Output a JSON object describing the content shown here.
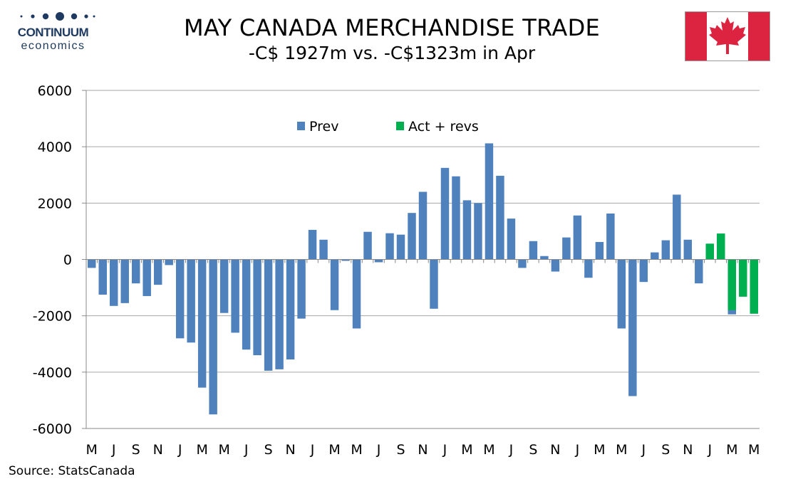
{
  "logo": {
    "name": "CONTINUUM",
    "sub": "economics"
  },
  "header": {
    "title": "MAY CANADA MERCHANDISE TRADE",
    "subtitle": "-C$ 1927m vs. -C$1323m in Apr"
  },
  "flag_icon": "canada-flag-icon",
  "source": "Source: StatsCanada",
  "colors": {
    "prev": "#4f81bd",
    "act": "#00b050",
    "grid": "#a6a6a6",
    "flag_red": "#dc2440"
  },
  "chart_data": {
    "type": "bar",
    "title": "",
    "ylim": [
      -6000,
      6000
    ],
    "yticks": [
      6000,
      4000,
      2000,
      0,
      -2000,
      -4000,
      -6000
    ],
    "grid": true,
    "legend_position": "top-center",
    "x_tick_labels": [
      "M",
      "J",
      "S",
      "N",
      "J",
      "M",
      "M",
      "J",
      "S",
      "N",
      "J",
      "M",
      "M",
      "J",
      "S",
      "N",
      "J",
      "M",
      "M",
      "J",
      "S",
      "N",
      "J",
      "M",
      "M",
      "J",
      "S",
      "N",
      "J",
      "M",
      "M"
    ],
    "series": [
      {
        "name": "Prev",
        "values": [
          -300,
          -1250,
          -1650,
          -1550,
          -850,
          -1300,
          -900,
          -200,
          -2800,
          -2950,
          -4550,
          -5500,
          -1900,
          -2600,
          -3200,
          -3400,
          -3950,
          -3900,
          -3550,
          -2100,
          1050,
          700,
          -1800,
          -50,
          -2450,
          980,
          -100,
          930,
          880,
          1650,
          2400,
          -1750,
          3250,
          2950,
          2100,
          2000,
          4120,
          2970,
          1450,
          -300,
          650,
          120,
          -430,
          780,
          1560,
          -650,
          620,
          1630,
          -2450,
          -4850,
          -800,
          250,
          680,
          2300,
          700,
          -850,
          550,
          830,
          -1950,
          -1050,
          -1850
        ]
      },
      {
        "name": "Act + revs",
        "values": [
          null,
          null,
          null,
          null,
          null,
          null,
          null,
          null,
          null,
          null,
          null,
          null,
          null,
          null,
          null,
          null,
          null,
          null,
          null,
          null,
          null,
          null,
          null,
          null,
          null,
          null,
          null,
          null,
          null,
          null,
          null,
          null,
          null,
          null,
          null,
          null,
          null,
          null,
          null,
          null,
          null,
          null,
          null,
          null,
          null,
          null,
          null,
          null,
          null,
          null,
          null,
          null,
          null,
          null,
          null,
          null,
          560,
          920,
          -1800,
          -1323,
          -1927
        ]
      }
    ]
  }
}
